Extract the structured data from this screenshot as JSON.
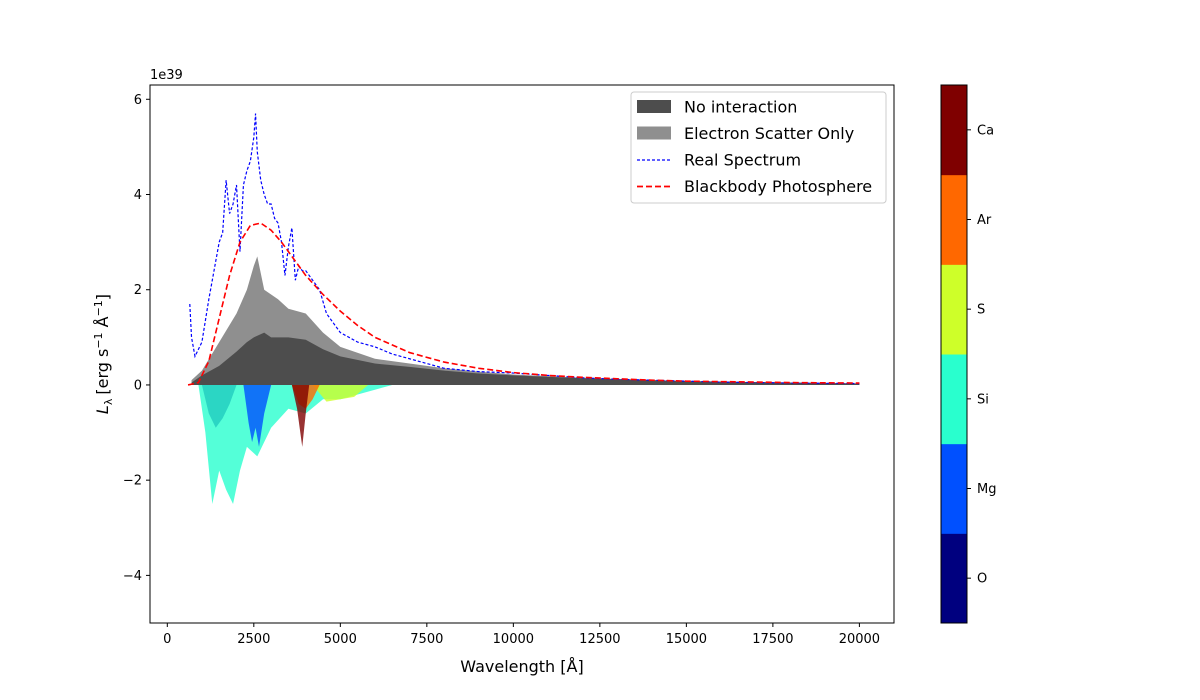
{
  "chart_data": {
    "type": "area",
    "xlabel": "Wavelength [Å]",
    "ylabel_prefix": "L",
    "ylabel_sub": "λ",
    "ylabel_units": "[erg s",
    "ylabel_sup1": "−1",
    "ylabel_units_mid": " Å",
    "ylabel_sup2": "−1",
    "ylabel_close": "]",
    "y_scale_note": "1e39",
    "xlim": [
      -500,
      21000
    ],
    "ylim": [
      -5,
      6.3
    ],
    "xticks": [
      0,
      2500,
      5000,
      7500,
      10000,
      12500,
      15000,
      17500,
      20000
    ],
    "yticks": [
      -4,
      -2,
      0,
      2,
      4,
      6
    ],
    "ytick_labels": [
      "−4",
      "−2",
      "0",
      "2",
      "4",
      "6"
    ],
    "legend": [
      {
        "label": "No interaction",
        "style": "patch",
        "color": "#4d4d4d"
      },
      {
        "label": "Electron Scatter Only",
        "style": "patch",
        "color": "#8f8f8f"
      },
      {
        "label": "Real Spectrum",
        "style": "line-dashed-thin",
        "color": "#0000ff"
      },
      {
        "label": "Blackbody Photosphere",
        "style": "line-dashed-thick",
        "color": "#ff0000"
      }
    ],
    "series": [
      {
        "name": "Real Spectrum",
        "color": "#0000ff",
        "x": [
          650,
          700,
          800,
          1000,
          1200,
          1400,
          1500,
          1600,
          1700,
          1800,
          1900,
          2000,
          2100,
          2200,
          2300,
          2400,
          2500,
          2550,
          2600,
          2700,
          2800,
          2900,
          3000,
          3100,
          3200,
          3300,
          3400,
          3500,
          3600,
          3700,
          3800,
          3900,
          4000,
          4200,
          4400,
          4600,
          4800,
          5000,
          5500,
          6000,
          6500,
          7000,
          7500,
          8000,
          9000,
          10000,
          11000,
          12000,
          13000,
          14000,
          15000,
          16000,
          17000,
          18000,
          19000,
          20000
        ],
        "values": [
          1.7,
          1.0,
          0.6,
          0.9,
          1.8,
          2.6,
          3.0,
          3.2,
          4.3,
          3.6,
          3.8,
          4.2,
          2.8,
          4.2,
          4.5,
          4.7,
          5.2,
          5.7,
          4.9,
          4.3,
          4.0,
          3.8,
          3.8,
          3.5,
          3.4,
          3.0,
          2.3,
          2.9,
          3.3,
          2.2,
          2.5,
          2.4,
          2.4,
          2.2,
          2.0,
          1.5,
          1.3,
          1.1,
          0.9,
          0.8,
          0.65,
          0.55,
          0.45,
          0.35,
          0.28,
          0.25,
          0.2,
          0.15,
          0.12,
          0.1,
          0.08,
          0.06,
          0.05,
          0.04,
          0.035,
          0.03
        ]
      },
      {
        "name": "Blackbody Photosphere",
        "color": "#ff0000",
        "x": [
          600,
          900,
          1200,
          1500,
          1800,
          2100,
          2400,
          2700,
          3000,
          3300,
          3600,
          4000,
          4500,
          5000,
          5500,
          6000,
          7000,
          8000,
          9000,
          10000,
          11000,
          12000,
          13000,
          14000,
          15000,
          16000,
          17000,
          18000,
          19000,
          20000
        ],
        "values": [
          0.0,
          0.05,
          0.5,
          1.4,
          2.3,
          3.0,
          3.35,
          3.4,
          3.25,
          3.0,
          2.7,
          2.3,
          1.9,
          1.55,
          1.25,
          1.0,
          0.68,
          0.48,
          0.35,
          0.26,
          0.2,
          0.16,
          0.13,
          0.1,
          0.08,
          0.07,
          0.06,
          0.05,
          0.045,
          0.04
        ]
      },
      {
        "name": "Electron Scatter Only",
        "color": "#8f8f8f",
        "x": [
          700,
          1000,
          1500,
          2000,
          2300,
          2500,
          2600,
          2800,
          3000,
          3200,
          3500,
          4000,
          4500,
          5000,
          6000,
          7000,
          8000,
          9000,
          10000,
          12000,
          15000,
          20000
        ],
        "values": [
          0.1,
          0.3,
          0.9,
          1.5,
          2.0,
          2.5,
          2.7,
          2.0,
          1.9,
          1.8,
          1.6,
          1.5,
          1.1,
          0.8,
          0.55,
          0.45,
          0.35,
          0.28,
          0.22,
          0.15,
          0.08,
          0.03
        ]
      },
      {
        "name": "No interaction",
        "color": "#4d4d4d",
        "x": [
          700,
          1000,
          1500,
          2000,
          2300,
          2500,
          2800,
          3000,
          3500,
          4000,
          4500,
          5000,
          6000,
          7000,
          8000,
          9000,
          10000,
          12000,
          15000,
          20000
        ],
        "values": [
          0.05,
          0.2,
          0.4,
          0.7,
          0.9,
          1.0,
          1.1,
          1.0,
          1.0,
          0.95,
          0.75,
          0.6,
          0.45,
          0.38,
          0.3,
          0.24,
          0.2,
          0.14,
          0.08,
          0.03
        ]
      }
    ],
    "absorption": [
      {
        "element": "O",
        "color": "#00007f",
        "x": [
          1000,
          1200,
          1400,
          1600,
          1800,
          2000
        ],
        "values": [
          0,
          -0.6,
          -0.9,
          -0.7,
          -0.4,
          0
        ]
      },
      {
        "element": "Si",
        "color": "#29ffce",
        "x": [
          900,
          1100,
          1300,
          1500,
          1700,
          1900,
          2100,
          2300,
          2600,
          3000,
          3500,
          4000,
          4500,
          5000,
          5500,
          6000,
          6500
        ],
        "values": [
          0,
          -1.0,
          -2.5,
          -1.8,
          -2.2,
          -2.5,
          -1.8,
          -1.3,
          -1.5,
          -0.9,
          -0.5,
          -0.6,
          -0.3,
          -0.3,
          -0.2,
          -0.1,
          0
        ]
      },
      {
        "element": "Mg",
        "color": "#0050ff",
        "x": [
          2200,
          2350,
          2450,
          2550,
          2650,
          2800,
          3000
        ],
        "values": [
          0,
          -0.8,
          -1.2,
          -0.9,
          -1.3,
          -0.6,
          0
        ]
      },
      {
        "element": "S",
        "color": "#ceff29",
        "x": [
          4200,
          4600,
          5000,
          5400,
          5800
        ],
        "values": [
          0,
          -0.35,
          -0.3,
          -0.25,
          0
        ]
      },
      {
        "element": "Ar",
        "color": "#ff6800",
        "x": [
          3600,
          3800,
          4000,
          4200,
          4400
        ],
        "values": [
          0,
          -0.4,
          -0.5,
          -0.3,
          0
        ]
      },
      {
        "element": "Ca",
        "color": "#7f0000",
        "x": [
          3600,
          3750,
          3900,
          4000,
          4100
        ],
        "values": [
          0,
          -0.5,
          -1.3,
          -0.6,
          0
        ]
      }
    ],
    "colorbar": [
      {
        "label": "O",
        "color": "#00007f"
      },
      {
        "label": "Mg",
        "color": "#0050ff"
      },
      {
        "label": "Si",
        "color": "#29ffce"
      },
      {
        "label": "S",
        "color": "#ceff29"
      },
      {
        "label": "Ar",
        "color": "#ff6800"
      },
      {
        "label": "Ca",
        "color": "#7f0000"
      }
    ]
  }
}
